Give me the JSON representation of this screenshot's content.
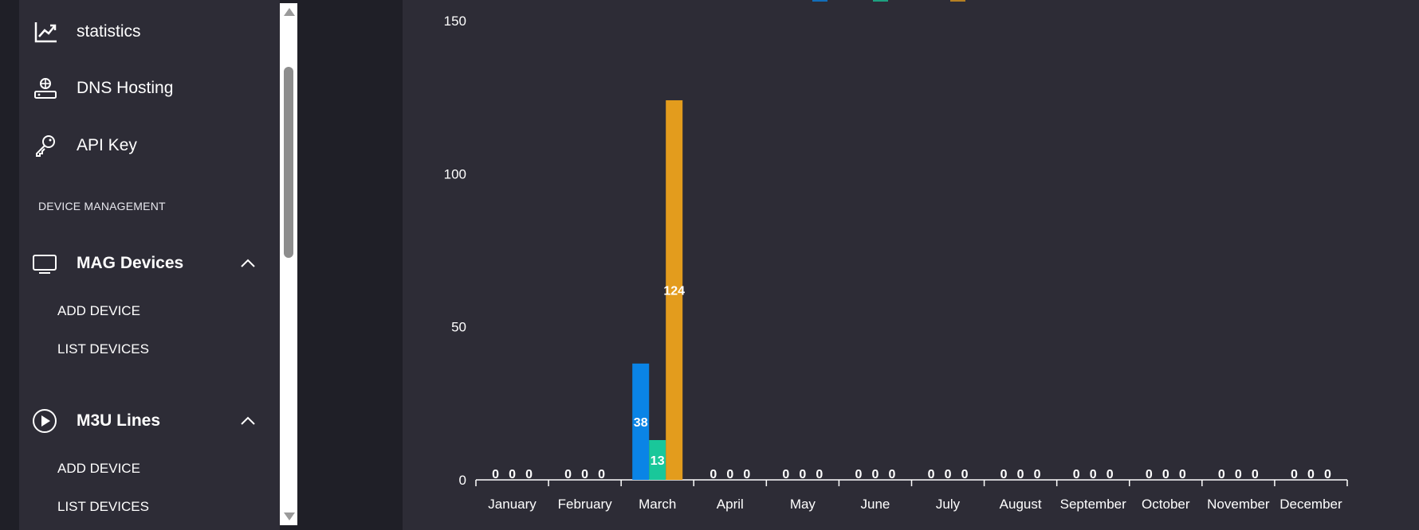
{
  "sidebar": {
    "items": [
      {
        "label": "statistics",
        "icon": "chart-line-icon"
      },
      {
        "label": "DNS Hosting",
        "icon": "server-globe-icon"
      },
      {
        "label": "API Key",
        "icon": "key-icon"
      }
    ],
    "section_label": "DEVICE MANAGEMENT",
    "groups": [
      {
        "label": "MAG Devices",
        "icon": "monitor-icon",
        "sub": [
          "ADD DEVICE",
          "LIST DEVICES"
        ]
      },
      {
        "label": "M3U Lines",
        "icon": "play-circle-icon",
        "sub": [
          "ADD DEVICE",
          "LIST DEVICES"
        ]
      }
    ]
  },
  "colors": {
    "background": "#1f1f27",
    "panel": "#2d2c36",
    "series_blue": "#0a84e6",
    "series_green": "#19c79a",
    "series_orange": "#e39c1d"
  },
  "chart_data": {
    "type": "bar",
    "categories": [
      "January",
      "February",
      "March",
      "April",
      "May",
      "June",
      "July",
      "August",
      "September",
      "October",
      "November",
      "December"
    ],
    "series": [
      {
        "color": "#0a84e6",
        "values": [
          0,
          0,
          38,
          0,
          0,
          0,
          0,
          0,
          0,
          0,
          0,
          0
        ]
      },
      {
        "color": "#19c79a",
        "values": [
          0,
          0,
          13,
          0,
          0,
          0,
          0,
          0,
          0,
          0,
          0,
          0
        ]
      },
      {
        "color": "#e39c1d",
        "values": [
          0,
          0,
          124,
          0,
          0,
          0,
          0,
          0,
          0,
          0,
          0,
          0
        ]
      }
    ],
    "ylim": [
      0,
      150
    ],
    "yticks": [
      0,
      50,
      100,
      150
    ],
    "grid": false,
    "legend": "top-center"
  }
}
